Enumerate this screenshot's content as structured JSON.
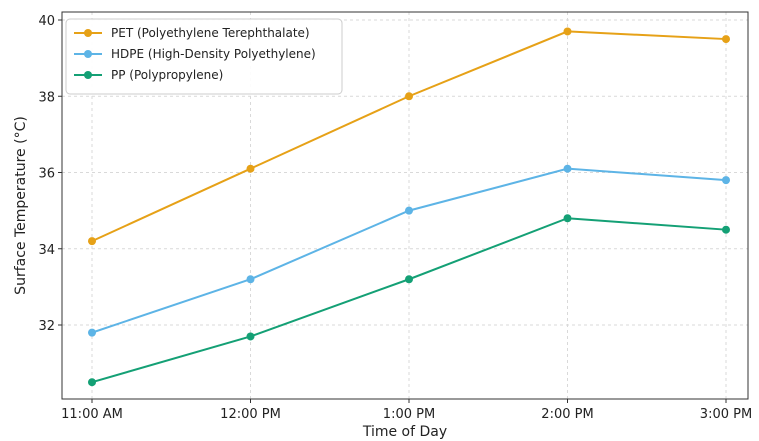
{
  "chart_data": {
    "type": "line",
    "title": "",
    "xlabel": "Time of Day",
    "ylabel": "Surface Temperature (°C)",
    "categories": [
      "11:00 AM",
      "12:00 PM",
      "1:00 PM",
      "2:00 PM",
      "3:00 PM"
    ],
    "yticks": [
      32,
      34,
      36,
      38,
      40
    ],
    "ylim": [
      30,
      40
    ],
    "grid": true,
    "legend_position": "top-left",
    "series": [
      {
        "name": "PET (Polyethylene Terephthalate)",
        "color": "#E6A117",
        "values": [
          34.2,
          36.1,
          38.0,
          39.7,
          39.5
        ]
      },
      {
        "name": "HDPE (High-Density Polyethylene)",
        "color": "#5DB4E6",
        "values": [
          31.8,
          33.2,
          35.0,
          36.1,
          35.8
        ]
      },
      {
        "name": "PP (Polypropylene)",
        "color": "#14A075",
        "values": [
          30.5,
          31.7,
          33.2,
          34.8,
          34.5
        ]
      }
    ]
  }
}
